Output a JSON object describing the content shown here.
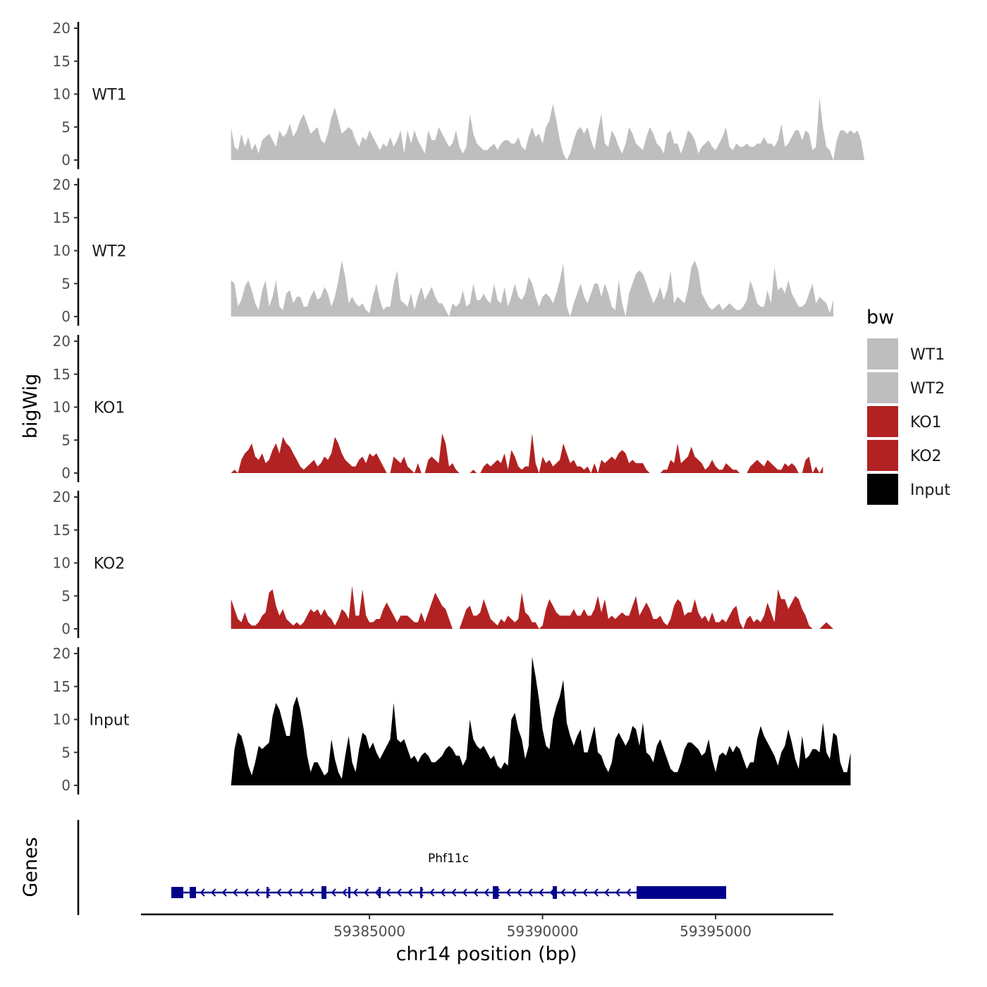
{
  "chart_data": {
    "type": "area",
    "ylabel": "bigWig",
    "xlabel": "chr14 position (bp)",
    "xlim": [
      59378400,
      59398400
    ],
    "x_start": 59381000,
    "x_step": 100,
    "ylim": [
      0,
      21
    ],
    "y_ticks": [
      "0",
      "5",
      "10",
      "15",
      "20"
    ],
    "x_ticks": [
      {
        "value": 59385000,
        "label": "59385000"
      },
      {
        "value": 59390000,
        "label": "59390000"
      },
      {
        "value": 59395000,
        "label": "59395000"
      }
    ],
    "legend": {
      "title": "bw",
      "entries": [
        {
          "label": "WT1",
          "color": "#bebebe"
        },
        {
          "label": "WT2",
          "color": "#bebebe"
        },
        {
          "label": "KO1",
          "color": "#b22222"
        },
        {
          "label": "KO2",
          "color": "#b22222"
        },
        {
          "label": "Input",
          "color": "#000000"
        }
      ]
    },
    "series": [
      {
        "name": "WT1",
        "color": "#bebebe",
        "values": [
          5,
          2,
          1.5,
          4,
          2,
          3.5,
          1.5,
          2.5,
          1,
          3,
          3.5,
          4,
          3,
          2,
          4.5,
          3.5,
          4,
          5.5,
          3.5,
          4.5,
          6,
          7,
          5.5,
          4,
          4.5,
          5,
          3,
          2.5,
          4,
          6.5,
          8,
          6,
          4,
          4.5,
          5,
          4.5,
          3,
          2,
          3.5,
          3,
          4.5,
          3.5,
          2.5,
          1.5,
          2.5,
          2,
          3.5,
          2,
          3,
          4.5,
          1,
          4.5,
          2.5,
          4.5,
          3,
          2,
          1,
          4.5,
          3,
          3,
          5,
          4,
          3,
          2,
          2.5,
          4.5,
          2,
          1,
          2,
          7,
          4,
          2.5,
          2,
          1.5,
          1.5,
          2,
          2.5,
          1.5,
          2.5,
          3,
          3,
          2.5,
          2.5,
          3.5,
          2,
          1.5,
          3.5,
          5,
          3.5,
          4,
          2.5,
          5,
          6,
          8.5,
          6,
          3,
          1,
          0,
          1,
          3,
          4.5,
          5,
          4,
          5,
          3,
          1.5,
          4.5,
          7,
          2.5,
          2,
          4.5,
          3.5,
          2,
          1,
          2.5,
          5,
          4,
          2.5,
          2,
          1.5,
          3.5,
          5,
          4,
          2.5,
          2,
          1,
          4,
          4.5,
          2.5,
          2.5,
          1,
          2.5,
          4.5,
          4,
          3,
          1,
          2,
          2.5,
          3,
          2,
          1.5,
          2.5,
          3.5,
          5,
          2,
          1.5,
          2.5,
          2,
          2,
          2.5,
          2,
          2,
          2.5,
          2.5,
          3.5,
          2.5,
          2.5,
          2,
          3,
          5.5,
          2,
          2.5,
          3.5,
          4.5,
          4.5,
          3,
          4.5,
          4,
          1.5,
          2,
          9.5,
          5,
          2,
          1.5,
          0,
          3,
          4.5,
          4.5,
          4,
          4.5,
          4,
          4.5,
          3,
          0
        ]
      },
      {
        "name": "WT2",
        "color": "#bebebe",
        "values": [
          5.5,
          5,
          1.5,
          2.5,
          4.5,
          5.5,
          4,
          2,
          1,
          4,
          5.5,
          1.5,
          3,
          5.5,
          1.5,
          1,
          3.5,
          4,
          2,
          3,
          3,
          1.5,
          1.5,
          3,
          4,
          2.5,
          3,
          4.5,
          3.5,
          1.5,
          3,
          5.5,
          8.5,
          6,
          2,
          3,
          2,
          1.5,
          2,
          1,
          0.5,
          3,
          5,
          2.5,
          1,
          1.5,
          1.5,
          5,
          7,
          2.5,
          2,
          1.5,
          3.5,
          1,
          3,
          4.5,
          2.5,
          3.5,
          4.5,
          3,
          2,
          2,
          1,
          0,
          2,
          1.5,
          2,
          4,
          1.5,
          2,
          5,
          2.5,
          2.5,
          3.5,
          2.5,
          2,
          5,
          2.5,
          2,
          4.5,
          1.5,
          3,
          5,
          3,
          2.5,
          3.5,
          6,
          5,
          3,
          1.5,
          3,
          3.5,
          3,
          2,
          3.5,
          5.5,
          8,
          1.5,
          0,
          2,
          3.5,
          5,
          3,
          2,
          3.5,
          5,
          5,
          3,
          5,
          3.5,
          1.5,
          1,
          5.5,
          2,
          0,
          3.5,
          5,
          6.5,
          7,
          6.5,
          5,
          3.5,
          2,
          3,
          4.5,
          2.5,
          4,
          7,
          2,
          3,
          2.5,
          2,
          4,
          7.5,
          8.5,
          7,
          3.5,
          2.5,
          1.5,
          1,
          1.5,
          2,
          1,
          1.5,
          2,
          1.5,
          1,
          1,
          1.5,
          2.5,
          5.5,
          4,
          2,
          1.5,
          1.5,
          4,
          2,
          7.5,
          4,
          4.5,
          3.5,
          5.5,
          3.5,
          2.5,
          1.5,
          1.5,
          2,
          3.5,
          5,
          2,
          3,
          2.5,
          2,
          0.5,
          2.5
        ]
      },
      {
        "name": "KO1",
        "color": "#b22222",
        "values": [
          0,
          0.5,
          0,
          2,
          3,
          3.5,
          4.5,
          2.5,
          2,
          3,
          1.5,
          2,
          3.5,
          4.5,
          3,
          5.5,
          4.5,
          4,
          3,
          2,
          1,
          0.5,
          1,
          1.5,
          2,
          1,
          1.5,
          2.5,
          2,
          3,
          5.5,
          4.5,
          3,
          2,
          1.5,
          1,
          1,
          2,
          2.5,
          1.5,
          3,
          2.5,
          3,
          2,
          1,
          0,
          0,
          2.5,
          2,
          1.5,
          2.5,
          1,
          0.5,
          0,
          1.5,
          0,
          0,
          2,
          2.5,
          2,
          1.5,
          6,
          4.5,
          1,
          1.5,
          0.5,
          0,
          0,
          0,
          0,
          0.5,
          0,
          0,
          1,
          1.5,
          1,
          1.5,
          2,
          1.5,
          3,
          0.5,
          3.5,
          2.5,
          1,
          0.5,
          1,
          1,
          6,
          1.5,
          0,
          2.5,
          1.5,
          2,
          1,
          1.5,
          2,
          4.5,
          3,
          1.5,
          2,
          1,
          1,
          0.5,
          1,
          0,
          1.5,
          0,
          2,
          1.5,
          2,
          2.5,
          2,
          3,
          3.5,
          3,
          1.5,
          2,
          1.5,
          1.5,
          1.5,
          0.5,
          0,
          0,
          0,
          0,
          0.5,
          0.5,
          2,
          1.5,
          4.5,
          1.5,
          2,
          2.5,
          4,
          2.5,
          2,
          1.5,
          0.5,
          1,
          2,
          1,
          0.5,
          0.5,
          1.5,
          1,
          0.5,
          0.5,
          0,
          0,
          0,
          1,
          1.5,
          2,
          1.5,
          1,
          2,
          1.5,
          1,
          0.5,
          0.5,
          1.5,
          1,
          1.5,
          1,
          0,
          0,
          2,
          2.5,
          0,
          1,
          0,
          1
        ]
      },
      {
        "name": "KO2",
        "color": "#b22222",
        "values": [
          4.5,
          3,
          1.5,
          1,
          2.5,
          1,
          0.5,
          0.5,
          1,
          2,
          2.5,
          5.5,
          6,
          3.5,
          2,
          3,
          1.5,
          1,
          0.5,
          1,
          0.5,
          1,
          2,
          3,
          2.5,
          3,
          2,
          3,
          2,
          1.5,
          0.5,
          1.5,
          3,
          2.5,
          1.5,
          6.5,
          2,
          2,
          6,
          2,
          1,
          1,
          1.5,
          1.5,
          3,
          4,
          3,
          2,
          1,
          2,
          2,
          2,
          1.5,
          1,
          1,
          2.5,
          1,
          2.5,
          4,
          5.5,
          4.5,
          3.5,
          3,
          1.5,
          0,
          0,
          0,
          1.5,
          3,
          3.5,
          2,
          2,
          2.5,
          4.5,
          3,
          1.5,
          1,
          0.5,
          1.5,
          1,
          2,
          1.5,
          1,
          1.5,
          5.5,
          2.5,
          2,
          1,
          1,
          0,
          0.5,
          3,
          4.5,
          3.5,
          2.5,
          2,
          2,
          2,
          2,
          3,
          2,
          2,
          3,
          2,
          2,
          3,
          5,
          2.5,
          4.5,
          1.5,
          2,
          1.5,
          2,
          2.5,
          2,
          2,
          3.5,
          5,
          2,
          3,
          4,
          3,
          1.5,
          1.5,
          2,
          1,
          0.5,
          1.5,
          3.5,
          4.5,
          4,
          2,
          2.5,
          2.5,
          4.5,
          2.5,
          1.5,
          2,
          1,
          2.5,
          1,
          1,
          1.5,
          1,
          2,
          3,
          3.5,
          1,
          0,
          1.5,
          2,
          1,
          1.5,
          1,
          2,
          4,
          2.5,
          1,
          6,
          4.5,
          4.5,
          3,
          4,
          5,
          4.5,
          3,
          2,
          0.5,
          0,
          0,
          0,
          0.5,
          1,
          0.5,
          0
        ]
      },
      {
        "name": "Input",
        "color": "#000000",
        "values": [
          0,
          5.5,
          8,
          7.5,
          5.5,
          3,
          1.5,
          3.5,
          6,
          5.5,
          6,
          6.5,
          10.5,
          12.5,
          11.5,
          9.5,
          7.5,
          7.5,
          12,
          13.5,
          11.5,
          8.5,
          4.5,
          2,
          3.5,
          3.5,
          2.5,
          1.5,
          2,
          7,
          4,
          2,
          1,
          4.5,
          7.5,
          3.5,
          2,
          5.5,
          8,
          7.5,
          5.5,
          6.5,
          5,
          4,
          5,
          6,
          7,
          12.5,
          7,
          6.5,
          7,
          5.5,
          4,
          4.5,
          3.5,
          4.5,
          5,
          4.5,
          3.5,
          3.5,
          4,
          4.5,
          5.5,
          6,
          5.5,
          4.5,
          4.5,
          3,
          4,
          10,
          7,
          6,
          5.5,
          6,
          5,
          4,
          4.5,
          3,
          2.5,
          3.5,
          3,
          10,
          11,
          8.5,
          7,
          4,
          6,
          19.5,
          16.5,
          13,
          8.5,
          6,
          5.5,
          10,
          12,
          13.5,
          16,
          9.5,
          7.5,
          6,
          7.5,
          8.5,
          5,
          5,
          7,
          9,
          5,
          4.5,
          3,
          2,
          3.5,
          7,
          8,
          7,
          6,
          7,
          9,
          8.5,
          6,
          9.5,
          5,
          4.5,
          3.5,
          6,
          7,
          5.5,
          4,
          2.5,
          2,
          2,
          3.5,
          5.5,
          6.5,
          6.5,
          6,
          5.5,
          4.5,
          5,
          7,
          4,
          2,
          4.5,
          5,
          4.5,
          6,
          5,
          6,
          5.5,
          4,
          2.5,
          3.5,
          3.5,
          7,
          9,
          7.5,
          6.5,
          5.5,
          4.5,
          3,
          5,
          6,
          8.5,
          6.5,
          4,
          2.5,
          7.5,
          4,
          4.5,
          5.5,
          5.5,
          5,
          9.5,
          5,
          4,
          8,
          7.5,
          3.5,
          2,
          2,
          5
        ]
      }
    ],
    "genes": {
      "label": "Genes",
      "name": "Phf11c"
    }
  }
}
